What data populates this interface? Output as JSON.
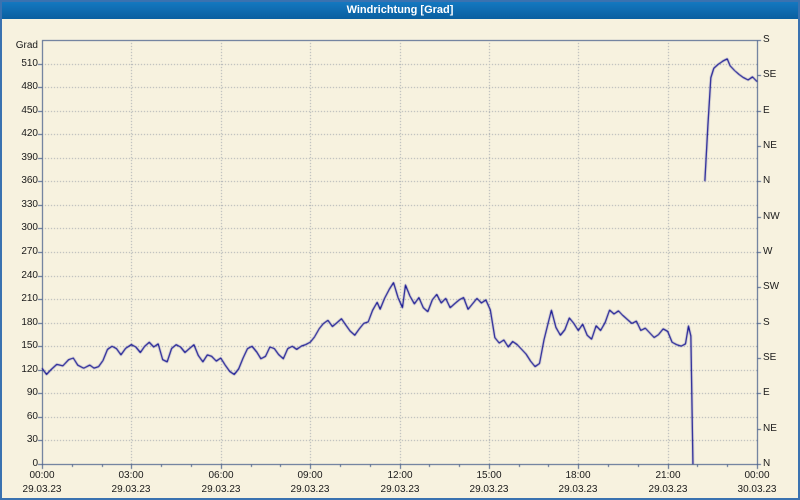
{
  "title_bar": {
    "title": "Windrichtung [Grad]"
  },
  "colors": {
    "background": "#f7f2df",
    "title_background": "#0d6cb5",
    "outer_border": "#3a72b0",
    "plot_frame": "#4a618c",
    "grid": "#9aa0a8",
    "line": "#00008b",
    "label_text": "#1a1a1a"
  },
  "chart_data": {
    "type": "line",
    "title": "Windrichtung [Grad]",
    "ylabel": "Grad",
    "ylim": [
      0,
      540
    ],
    "ytick_step": 30,
    "yticks_left": [
      0,
      30,
      60,
      90,
      120,
      150,
      180,
      210,
      240,
      270,
      300,
      330,
      360,
      390,
      420,
      450,
      480,
      510
    ],
    "yticks_right": [
      {
        "value": 0,
        "label": "N"
      },
      {
        "value": 45,
        "label": "NE"
      },
      {
        "value": 90,
        "label": "E"
      },
      {
        "value": 135,
        "label": "SE"
      },
      {
        "value": 180,
        "label": "S"
      },
      {
        "value": 225,
        "label": "SW"
      },
      {
        "value": 270,
        "label": "W"
      },
      {
        "value": 315,
        "label": "NW"
      },
      {
        "value": 360,
        "label": "N"
      },
      {
        "value": 405,
        "label": "NE"
      },
      {
        "value": 450,
        "label": "E"
      },
      {
        "value": 495,
        "label": "SE"
      },
      {
        "value": 540,
        "label": "S"
      }
    ],
    "xlim_hours": [
      0,
      24
    ],
    "xticks": [
      {
        "hour": 0,
        "time": "00:00",
        "date": "29.03.23"
      },
      {
        "hour": 3,
        "time": "03:00",
        "date": "29.03.23"
      },
      {
        "hour": 6,
        "time": "06:00",
        "date": "29.03.23"
      },
      {
        "hour": 9,
        "time": "09:00",
        "date": "29.03.23"
      },
      {
        "hour": 12,
        "time": "12:00",
        "date": "29.03.23"
      },
      {
        "hour": 15,
        "time": "15:00",
        "date": "29.03.23"
      },
      {
        "hour": 18,
        "time": "18:00",
        "date": "29.03.23"
      },
      {
        "hour": 21,
        "time": "21:00",
        "date": "29.03.23"
      },
      {
        "hour": 24,
        "time": "00:00",
        "date": "30.03.23"
      }
    ],
    "grid": true,
    "line_color": "#00008b",
    "series": [
      {
        "name": "Windrichtung",
        "segments": [
          [
            [
              0,
              122
            ],
            [
              0.15,
              114
            ],
            [
              0.3,
              120
            ],
            [
              0.5,
              127
            ],
            [
              0.7,
              125
            ],
            [
              0.9,
              133
            ],
            [
              1.05,
              135
            ],
            [
              1.2,
              126
            ],
            [
              1.4,
              122
            ],
            [
              1.6,
              126
            ],
            [
              1.75,
              122
            ],
            [
              1.9,
              124
            ],
            [
              2.05,
              132
            ],
            [
              2.2,
              146
            ],
            [
              2.35,
              150
            ],
            [
              2.5,
              147
            ],
            [
              2.65,
              139
            ],
            [
              2.8,
              147
            ],
            [
              3.0,
              152
            ],
            [
              3.15,
              149
            ],
            [
              3.3,
              142
            ],
            [
              3.45,
              150
            ],
            [
              3.6,
              155
            ],
            [
              3.75,
              149
            ],
            [
              3.9,
              153
            ],
            [
              4.05,
              133
            ],
            [
              4.2,
              130
            ],
            [
              4.35,
              147
            ],
            [
              4.5,
              152
            ],
            [
              4.65,
              149
            ],
            [
              4.8,
              142
            ],
            [
              4.95,
              147
            ],
            [
              5.1,
              152
            ],
            [
              5.25,
              138
            ],
            [
              5.4,
              130
            ],
            [
              5.55,
              139
            ],
            [
              5.7,
              137
            ],
            [
              5.85,
              131
            ],
            [
              6.0,
              135
            ],
            [
              6.15,
              126
            ],
            [
              6.3,
              118
            ],
            [
              6.45,
              114
            ],
            [
              6.6,
              121
            ],
            [
              6.75,
              135
            ],
            [
              6.9,
              147
            ],
            [
              7.05,
              150
            ],
            [
              7.2,
              143
            ],
            [
              7.35,
              134
            ],
            [
              7.5,
              137
            ],
            [
              7.65,
              149
            ],
            [
              7.8,
              147
            ],
            [
              7.95,
              139
            ],
            [
              8.1,
              134
            ],
            [
              8.25,
              147
            ],
            [
              8.4,
              150
            ],
            [
              8.55,
              146
            ],
            [
              8.7,
              150
            ],
            [
              8.85,
              152
            ],
            [
              9.0,
              155
            ],
            [
              9.15,
              162
            ],
            [
              9.3,
              172
            ],
            [
              9.45,
              179
            ],
            [
              9.6,
              183
            ],
            [
              9.75,
              175
            ],
            [
              9.9,
              180
            ],
            [
              10.05,
              185
            ],
            [
              10.2,
              177
            ],
            [
              10.35,
              169
            ],
            [
              10.5,
              164
            ],
            [
              10.65,
              172
            ],
            [
              10.8,
              179
            ],
            [
              10.95,
              181
            ],
            [
              11.1,
              196
            ],
            [
              11.25,
              206
            ],
            [
              11.35,
              197
            ],
            [
              11.5,
              211
            ],
            [
              11.65,
              222
            ],
            [
              11.8,
              231
            ],
            [
              11.95,
              212
            ],
            [
              12.1,
              199
            ],
            [
              12.2,
              228
            ],
            [
              12.35,
              214
            ],
            [
              12.5,
              204
            ],
            [
              12.65,
              212
            ],
            [
              12.8,
              199
            ],
            [
              12.95,
              194
            ],
            [
              13.1,
              209
            ],
            [
              13.25,
              216
            ],
            [
              13.4,
              205
            ],
            [
              13.55,
              211
            ],
            [
              13.7,
              199
            ],
            [
              13.85,
              204
            ],
            [
              14.0,
              209
            ],
            [
              14.15,
              212
            ],
            [
              14.3,
              197
            ],
            [
              14.45,
              204
            ],
            [
              14.6,
              211
            ],
            [
              14.75,
              205
            ],
            [
              14.9,
              209
            ],
            [
              15.05,
              196
            ],
            [
              15.2,
              161
            ],
            [
              15.35,
              154
            ],
            [
              15.5,
              158
            ],
            [
              15.65,
              149
            ],
            [
              15.8,
              156
            ],
            [
              15.95,
              152
            ],
            [
              16.1,
              146
            ],
            [
              16.25,
              140
            ],
            [
              16.4,
              131
            ],
            [
              16.55,
              124
            ],
            [
              16.7,
              128
            ],
            [
              16.85,
              158
            ],
            [
              17.0,
              181
            ],
            [
              17.1,
              196
            ],
            [
              17.25,
              174
            ],
            [
              17.4,
              164
            ],
            [
              17.55,
              171
            ],
            [
              17.7,
              186
            ],
            [
              17.85,
              179
            ],
            [
              18.0,
              170
            ],
            [
              18.15,
              178
            ],
            [
              18.3,
              164
            ],
            [
              18.45,
              159
            ],
            [
              18.6,
              176
            ],
            [
              18.75,
              170
            ],
            [
              18.9,
              180
            ],
            [
              19.05,
              196
            ],
            [
              19.2,
              191
            ],
            [
              19.35,
              195
            ],
            [
              19.5,
              189
            ],
            [
              19.65,
              184
            ],
            [
              19.8,
              179
            ],
            [
              19.95,
              182
            ],
            [
              20.1,
              170
            ],
            [
              20.25,
              173
            ],
            [
              20.4,
              167
            ],
            [
              20.55,
              161
            ],
            [
              20.7,
              165
            ],
            [
              20.85,
              172
            ],
            [
              21.0,
              169
            ],
            [
              21.15,
              155
            ],
            [
              21.3,
              152
            ],
            [
              21.45,
              150
            ],
            [
              21.6,
              153
            ],
            [
              21.7,
              176
            ],
            [
              21.78,
              163
            ],
            [
              21.85,
              0
            ]
          ],
          [
            [
              22.25,
              360
            ],
            [
              22.35,
              430
            ],
            [
              22.45,
              492
            ],
            [
              22.55,
              504
            ],
            [
              22.7,
              509
            ],
            [
              22.85,
              513
            ],
            [
              23.0,
              516
            ],
            [
              23.1,
              507
            ],
            [
              23.25,
              501
            ],
            [
              23.4,
              496
            ],
            [
              23.55,
              492
            ],
            [
              23.7,
              489
            ],
            [
              23.85,
              493
            ],
            [
              24.0,
              487
            ]
          ]
        ]
      }
    ]
  }
}
